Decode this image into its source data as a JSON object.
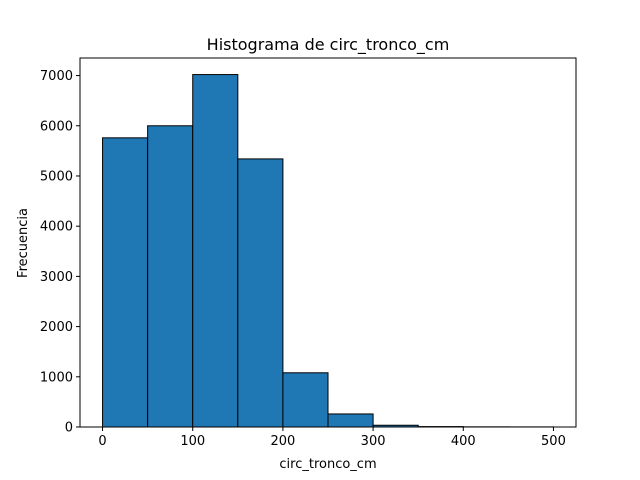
{
  "chart_data": {
    "type": "bar",
    "title": "Histograma de circ_tronco_cm",
    "xlabel": "circ_tronco_cm",
    "ylabel": "Frecuencia",
    "bins": [
      {
        "start": 0,
        "end": 50,
        "value": 5760
      },
      {
        "start": 50,
        "end": 100,
        "value": 6000
      },
      {
        "start": 100,
        "end": 150,
        "value": 7020
      },
      {
        "start": 150,
        "end": 200,
        "value": 5340
      },
      {
        "start": 200,
        "end": 250,
        "value": 1080
      },
      {
        "start": 250,
        "end": 300,
        "value": 260
      },
      {
        "start": 300,
        "end": 350,
        "value": 35
      },
      {
        "start": 350,
        "end": 400,
        "value": 8
      },
      {
        "start": 400,
        "end": 450,
        "value": 3
      },
      {
        "start": 450,
        "end": 500,
        "value": 2
      }
    ],
    "xlim": [
      -25,
      525
    ],
    "ylim": [
      0,
      7350
    ],
    "xticks": [
      0,
      100,
      200,
      300,
      400,
      500
    ],
    "yticks": [
      0,
      1000,
      2000,
      3000,
      4000,
      5000,
      6000,
      7000
    ],
    "grid": false,
    "colors": {
      "bar_fill": "#1f77b4",
      "bar_edge": "#000000"
    }
  }
}
